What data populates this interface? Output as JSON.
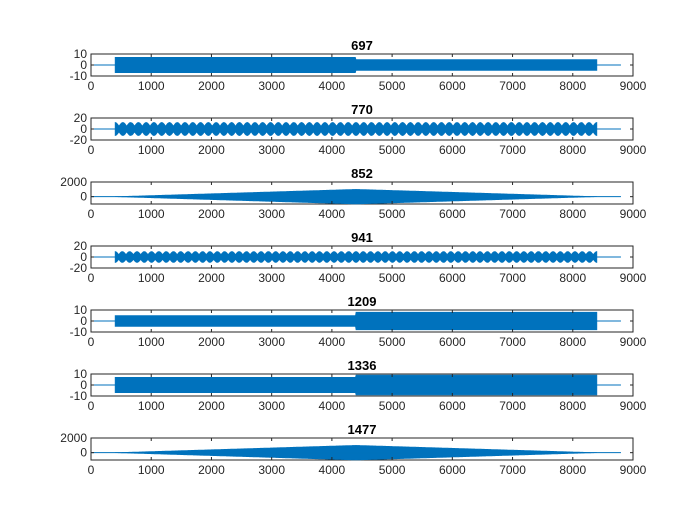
{
  "figure": {
    "background": "#ffffff",
    "series_color": "#0072BD"
  },
  "chart_data": [
    {
      "type": "line",
      "title": "697",
      "xlim": [
        0,
        9000
      ],
      "ylim": [
        -10,
        10
      ],
      "xticks": [
        0,
        1000,
        2000,
        3000,
        4000,
        5000,
        6000,
        7000,
        8000,
        9000
      ],
      "yticks": [
        -10,
        0,
        10
      ],
      "signal": {
        "x_start": 400,
        "x_end": 8400,
        "baseline_x": [
          0,
          8800
        ],
        "envelope": [
          {
            "x": 400,
            "amp": 7
          },
          {
            "x": 4390,
            "amp": 7
          },
          {
            "x": 4400,
            "amp": 5
          },
          {
            "x": 8400,
            "amp": 5
          }
        ],
        "modulation_cycles": 0
      }
    },
    {
      "type": "line",
      "title": "770",
      "xlim": [
        0,
        9000
      ],
      "ylim": [
        -20,
        20
      ],
      "xticks": [
        0,
        1000,
        2000,
        3000,
        4000,
        5000,
        6000,
        7000,
        8000,
        9000
      ],
      "yticks": [
        -20,
        0,
        20
      ],
      "signal": {
        "x_start": 400,
        "x_end": 8400,
        "baseline_x": [
          0,
          8800
        ],
        "envelope": [
          {
            "x": 400,
            "amp": 12
          },
          {
            "x": 8400,
            "amp": 12
          }
        ],
        "modulation_cycles": 62
      }
    },
    {
      "type": "line",
      "title": "852",
      "xlim": [
        0,
        9000
      ],
      "ylim": [
        -1000,
        2000
      ],
      "xticks": [
        0,
        1000,
        2000,
        3000,
        4000,
        5000,
        6000,
        7000,
        8000,
        9000
      ],
      "yticks": [
        0,
        2000
      ],
      "signal": {
        "x_start": 400,
        "x_end": 8400,
        "baseline_x": [
          0,
          8800
        ],
        "envelope": [
          {
            "x": 400,
            "amp": 0
          },
          {
            "x": 4400,
            "amp": 1000
          },
          {
            "x": 8400,
            "amp": 0
          }
        ],
        "modulation_cycles": 0
      }
    },
    {
      "type": "line",
      "title": "941",
      "xlim": [
        0,
        9000
      ],
      "ylim": [
        -20,
        20
      ],
      "xticks": [
        0,
        1000,
        2000,
        3000,
        4000,
        5000,
        6000,
        7000,
        8000,
        9000
      ],
      "yticks": [
        -20,
        0,
        20
      ],
      "signal": {
        "x_start": 400,
        "x_end": 8400,
        "baseline_x": [
          0,
          8800
        ],
        "envelope": [
          {
            "x": 400,
            "amp": 10
          },
          {
            "x": 8400,
            "amp": 10
          }
        ],
        "modulation_cycles": 66
      }
    },
    {
      "type": "line",
      "title": "1209",
      "xlim": [
        0,
        9000
      ],
      "ylim": [
        -10,
        10
      ],
      "xticks": [
        0,
        1000,
        2000,
        3000,
        4000,
        5000,
        6000,
        7000,
        8000,
        9000
      ],
      "yticks": [
        -10,
        0,
        10
      ],
      "signal": {
        "x_start": 400,
        "x_end": 8400,
        "baseline_x": [
          0,
          8800
        ],
        "envelope": [
          {
            "x": 400,
            "amp": 5
          },
          {
            "x": 4390,
            "amp": 5
          },
          {
            "x": 4400,
            "amp": 8
          },
          {
            "x": 8400,
            "amp": 8
          }
        ],
        "modulation_cycles": 0
      }
    },
    {
      "type": "line",
      "title": "1336",
      "xlim": [
        0,
        9000
      ],
      "ylim": [
        -10,
        10
      ],
      "xticks": [
        0,
        1000,
        2000,
        3000,
        4000,
        5000,
        6000,
        7000,
        8000,
        9000
      ],
      "yticks": [
        -10,
        0,
        10
      ],
      "signal": {
        "x_start": 400,
        "x_end": 8400,
        "baseline_x": [
          0,
          8800
        ],
        "envelope": [
          {
            "x": 400,
            "amp": 7
          },
          {
            "x": 4390,
            "amp": 7
          },
          {
            "x": 4400,
            "amp": 9
          },
          {
            "x": 8400,
            "amp": 9
          }
        ],
        "modulation_cycles": 0
      }
    },
    {
      "type": "line",
      "title": "1477",
      "xlim": [
        0,
        9000
      ],
      "ylim": [
        -1000,
        2000
      ],
      "xticks": [
        0,
        1000,
        2000,
        3000,
        4000,
        5000,
        6000,
        7000,
        8000,
        9000
      ],
      "yticks": [
        0,
        2000
      ],
      "signal": {
        "x_start": 400,
        "x_end": 8400,
        "baseline_x": [
          0,
          8800
        ],
        "envelope": [
          {
            "x": 400,
            "amp": 0
          },
          {
            "x": 4400,
            "amp": 1000
          },
          {
            "x": 8400,
            "amp": 0
          }
        ],
        "modulation_cycles": 0
      }
    }
  ]
}
